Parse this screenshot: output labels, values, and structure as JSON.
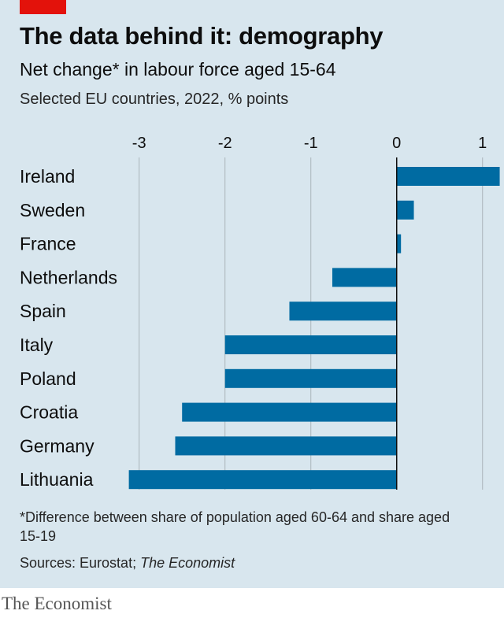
{
  "header": {
    "title": "The data behind it: demography",
    "subtitle": "Net change* in labour force aged 15-64",
    "subsubtitle": "Selected EU countries, 2022, % points"
  },
  "footer": {
    "footnote": "*Difference between share of population aged 60-64 and share aged 15-19",
    "sources_prefix": "Sources: Eurostat; ",
    "sources_italic": "The Economist",
    "brand": "The Economist"
  },
  "colors": {
    "bar": "#006ba2",
    "background": "#d8e6ee",
    "accent": "#e3120b"
  },
  "chart_data": {
    "type": "bar",
    "orientation": "horizontal",
    "categories": [
      "Ireland",
      "Sweden",
      "France",
      "Netherlands",
      "Spain",
      "Italy",
      "Poland",
      "Croatia",
      "Germany",
      "Lithuania"
    ],
    "values": [
      1.2,
      0.2,
      0.05,
      -0.75,
      -1.25,
      -2.0,
      -2.0,
      -2.5,
      -2.58,
      -3.12
    ],
    "xlim": [
      -3.3,
      1.25
    ],
    "xticks": [
      -3,
      -2,
      -1,
      0,
      1
    ],
    "xtick_labels": [
      "-3",
      "-2",
      "-1",
      "0",
      "1"
    ],
    "xlabel": "",
    "ylabel": "",
    "grid": "vertical",
    "axis_position": "top"
  }
}
